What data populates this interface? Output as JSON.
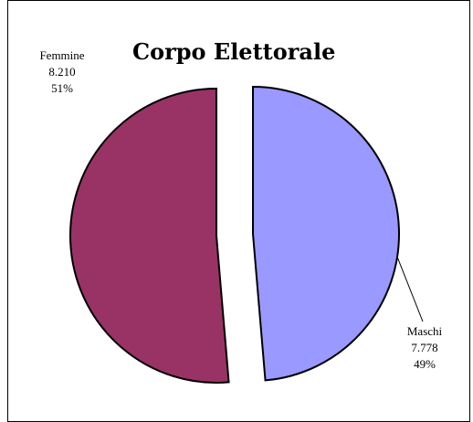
{
  "chart_data": {
    "type": "pie",
    "title": "Corpo Elettorale",
    "slices": [
      {
        "name": "Femmine",
        "value": 8210,
        "value_label": "8.210",
        "percent_label": "51%",
        "color": "#993366"
      },
      {
        "name": "Maschi",
        "value": 7778,
        "value_label": "7.778",
        "percent_label": "49%",
        "color": "#9999ff"
      }
    ],
    "exploded": true,
    "legend": "none"
  }
}
